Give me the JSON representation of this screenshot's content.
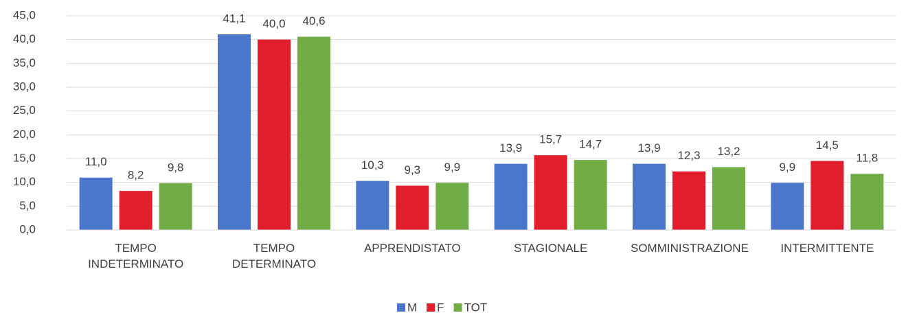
{
  "chart_data": {
    "type": "bar",
    "categories": [
      "TEMPO INDETERMINATO",
      "TEMPO DETERMINATO",
      "APPRENDISTATO",
      "STAGIONALE",
      "SOMMINISTRAZIONE",
      "INTERMITTENTE"
    ],
    "series": [
      {
        "name": "M",
        "color": "#4a77cc",
        "values": [
          11.0,
          41.1,
          10.3,
          13.9,
          13.9,
          9.9
        ],
        "value_labels": [
          "11,0",
          "41,1",
          "10,3",
          "13,9",
          "13,9",
          "9,9"
        ]
      },
      {
        "name": "F",
        "color": "#e31e2c",
        "values": [
          8.2,
          40.0,
          9.3,
          15.7,
          12.3,
          14.5
        ],
        "value_labels": [
          "8,2",
          "40,0",
          "9,3",
          "15,7",
          "12,3",
          "14,5"
        ]
      },
      {
        "name": "TOT",
        "color": "#70ad47",
        "values": [
          9.8,
          40.6,
          9.9,
          14.7,
          13.2,
          11.8
        ],
        "value_labels": [
          "9,8",
          "40,6",
          "9,9",
          "14,7",
          "13,2",
          "11,8"
        ]
      }
    ],
    "ylim": [
      0,
      45
    ],
    "yticks": [
      {
        "value": 0,
        "label": "0,0"
      },
      {
        "value": 5,
        "label": "5,0"
      },
      {
        "value": 10,
        "label": "10,0"
      },
      {
        "value": 15,
        "label": "15,0"
      },
      {
        "value": 20,
        "label": "20,0"
      },
      {
        "value": 25,
        "label": "25,0"
      },
      {
        "value": 30,
        "label": "30,0"
      },
      {
        "value": 35,
        "label": "35,0"
      },
      {
        "value": 40,
        "label": "40,0"
      },
      {
        "value": 45,
        "label": "45,0"
      }
    ],
    "grid": true,
    "legend": "bottom"
  }
}
